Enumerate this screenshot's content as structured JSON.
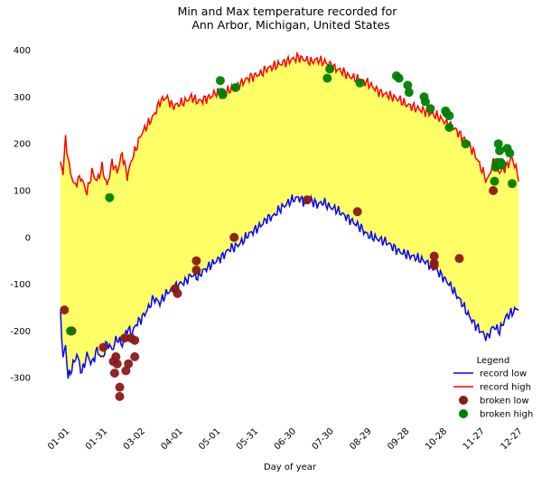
{
  "chart_data": {
    "type": "line",
    "title_line1": "Min and Max temperature recorded for",
    "title_line2": "Ann Arbor, Michigan, United States",
    "xlabel": "Day of year",
    "ylabel": "",
    "xlim": [
      1,
      365
    ],
    "ylim": [
      -400,
      430
    ],
    "y_ticks": [
      400,
      300,
      200,
      100,
      0,
      -100,
      -200,
      -300
    ],
    "x_ticks": [
      {
        "day": 1,
        "label": "01-01"
      },
      {
        "day": 31,
        "label": "01-31"
      },
      {
        "day": 61,
        "label": "03-02"
      },
      {
        "day": 91,
        "label": "04-01"
      },
      {
        "day": 121,
        "label": "05-01"
      },
      {
        "day": 151,
        "label": "05-31"
      },
      {
        "day": 181,
        "label": "06-30"
      },
      {
        "day": 211,
        "label": "07-30"
      },
      {
        "day": 241,
        "label": "08-29"
      },
      {
        "day": 271,
        "label": "09-28"
      },
      {
        "day": 301,
        "label": "10-28"
      },
      {
        "day": 331,
        "label": "11-27"
      },
      {
        "day": 361,
        "label": "12-27"
      }
    ],
    "fill_color": "#ffff66",
    "grid": false,
    "legend": {
      "title": "Legend",
      "placement": "bottom-right",
      "entries": [
        {
          "label": "record low",
          "kind": "line",
          "color": "#0000ff"
        },
        {
          "label": "record high",
          "kind": "line",
          "color": "#ff0000"
        },
        {
          "label": "broken low",
          "kind": "marker",
          "color": "#8b1a1a"
        },
        {
          "label": "broken high",
          "kind": "marker",
          "color": "#008000"
        }
      ]
    },
    "series": [
      {
        "name": "record high",
        "color": "#ff0000",
        "knots": [
          [
            1,
            160
          ],
          [
            3,
            140
          ],
          [
            5,
            210
          ],
          [
            8,
            150
          ],
          [
            12,
            110
          ],
          [
            17,
            130
          ],
          [
            22,
            95
          ],
          [
            26,
            140
          ],
          [
            30,
            120
          ],
          [
            34,
            150
          ],
          [
            38,
            110
          ],
          [
            42,
            160
          ],
          [
            46,
            140
          ],
          [
            50,
            180
          ],
          [
            54,
            130
          ],
          [
            58,
            170
          ],
          [
            61,
            190
          ],
          [
            65,
            220
          ],
          [
            70,
            240
          ],
          [
            75,
            260
          ],
          [
            80,
            290
          ],
          [
            85,
            300
          ],
          [
            90,
            280
          ],
          [
            95,
            285
          ],
          [
            100,
            290
          ],
          [
            105,
            300
          ],
          [
            110,
            290
          ],
          [
            115,
            295
          ],
          [
            120,
            300
          ],
          [
            125,
            310
          ],
          [
            130,
            305
          ],
          [
            135,
            315
          ],
          [
            140,
            320
          ],
          [
            145,
            330
          ],
          [
            150,
            340
          ],
          [
            155,
            345
          ],
          [
            160,
            350
          ],
          [
            165,
            360
          ],
          [
            170,
            365
          ],
          [
            175,
            370
          ],
          [
            180,
            375
          ],
          [
            185,
            380
          ],
          [
            190,
            385
          ],
          [
            195,
            380
          ],
          [
            200,
            375
          ],
          [
            205,
            380
          ],
          [
            210,
            375
          ],
          [
            215,
            370
          ],
          [
            220,
            360
          ],
          [
            225,
            355
          ],
          [
            230,
            345
          ],
          [
            235,
            340
          ],
          [
            240,
            335
          ],
          [
            245,
            330
          ],
          [
            250,
            320
          ],
          [
            255,
            310
          ],
          [
            260,
            305
          ],
          [
            265,
            300
          ],
          [
            270,
            295
          ],
          [
            275,
            285
          ],
          [
            280,
            280
          ],
          [
            285,
            275
          ],
          [
            290,
            270
          ],
          [
            295,
            265
          ],
          [
            300,
            260
          ],
          [
            305,
            250
          ],
          [
            310,
            240
          ],
          [
            315,
            230
          ],
          [
            320,
            215
          ],
          [
            325,
            200
          ],
          [
            330,
            180
          ],
          [
            335,
            150
          ],
          [
            340,
            120
          ],
          [
            345,
            160
          ],
          [
            350,
            140
          ],
          [
            355,
            150
          ],
          [
            360,
            170
          ],
          [
            365,
            130
          ]
        ]
      },
      {
        "name": "record low",
        "color": "#0000ff",
        "knots": [
          [
            1,
            -160
          ],
          [
            3,
            -260
          ],
          [
            5,
            -230
          ],
          [
            7,
            -300
          ],
          [
            10,
            -280
          ],
          [
            14,
            -250
          ],
          [
            18,
            -290
          ],
          [
            22,
            -250
          ],
          [
            26,
            -270
          ],
          [
            30,
            -240
          ],
          [
            34,
            -260
          ],
          [
            38,
            -225
          ],
          [
            42,
            -240
          ],
          [
            46,
            -215
          ],
          [
            50,
            -230
          ],
          [
            54,
            -195
          ],
          [
            58,
            -205
          ],
          [
            61,
            -185
          ],
          [
            65,
            -175
          ],
          [
            70,
            -155
          ],
          [
            75,
            -130
          ],
          [
            80,
            -140
          ],
          [
            85,
            -120
          ],
          [
            90,
            -110
          ],
          [
            95,
            -100
          ],
          [
            100,
            -95
          ],
          [
            105,
            -80
          ],
          [
            110,
            -85
          ],
          [
            115,
            -70
          ],
          [
            120,
            -60
          ],
          [
            125,
            -50
          ],
          [
            130,
            -40
          ],
          [
            135,
            -25
          ],
          [
            140,
            -20
          ],
          [
            145,
            -10
          ],
          [
            150,
            5
          ],
          [
            155,
            15
          ],
          [
            160,
            25
          ],
          [
            165,
            40
          ],
          [
            170,
            45
          ],
          [
            175,
            60
          ],
          [
            180,
            70
          ],
          [
            185,
            80
          ],
          [
            190,
            85
          ],
          [
            195,
            75
          ],
          [
            200,
            80
          ],
          [
            205,
            70
          ],
          [
            210,
            75
          ],
          [
            215,
            65
          ],
          [
            220,
            60
          ],
          [
            225,
            50
          ],
          [
            230,
            40
          ],
          [
            235,
            30
          ],
          [
            240,
            20
          ],
          [
            245,
            5
          ],
          [
            250,
            0
          ],
          [
            255,
            -5
          ],
          [
            260,
            -10
          ],
          [
            265,
            -20
          ],
          [
            270,
            -30
          ],
          [
            275,
            -35
          ],
          [
            280,
            -40
          ],
          [
            285,
            -45
          ],
          [
            290,
            -50
          ],
          [
            295,
            -60
          ],
          [
            300,
            -70
          ],
          [
            305,
            -85
          ],
          [
            310,
            -100
          ],
          [
            315,
            -120
          ],
          [
            320,
            -140
          ],
          [
            325,
            -165
          ],
          [
            330,
            -185
          ],
          [
            335,
            -200
          ],
          [
            340,
            -215
          ],
          [
            345,
            -190
          ],
          [
            350,
            -200
          ],
          [
            355,
            -170
          ],
          [
            360,
            -160
          ],
          [
            365,
            -150
          ]
        ]
      }
    ],
    "broken_low": [
      [
        4,
        -155
      ],
      [
        10,
        -200
      ],
      [
        35,
        -235
      ],
      [
        43,
        -265
      ],
      [
        44,
        -290
      ],
      [
        45,
        -255
      ],
      [
        46,
        -270
      ],
      [
        48,
        -320
      ],
      [
        48,
        -340
      ],
      [
        52,
        -215
      ],
      [
        53,
        -285
      ],
      [
        55,
        -270
      ],
      [
        57,
        -215
      ],
      [
        60,
        -255
      ],
      [
        60,
        -220
      ],
      [
        92,
        -110
      ],
      [
        94,
        -120
      ],
      [
        109,
        -70
      ],
      [
        109,
        -50
      ],
      [
        139,
        0
      ],
      [
        197,
        80
      ],
      [
        237,
        55
      ],
      [
        298,
        -40
      ],
      [
        298,
        -55
      ],
      [
        298,
        -60
      ],
      [
        318,
        -45
      ],
      [
        345,
        100
      ]
    ],
    "broken_high": [
      [
        9,
        -200
      ],
      [
        40,
        85
      ],
      [
        128,
        335
      ],
      [
        129,
        310
      ],
      [
        130,
        305
      ],
      [
        140,
        320
      ],
      [
        213,
        340
      ],
      [
        215,
        360
      ],
      [
        239,
        330
      ],
      [
        268,
        345
      ],
      [
        270,
        340
      ],
      [
        277,
        325
      ],
      [
        278,
        310
      ],
      [
        290,
        300
      ],
      [
        291,
        290
      ],
      [
        295,
        275
      ],
      [
        307,
        270
      ],
      [
        308,
        265
      ],
      [
        310,
        235
      ],
      [
        310,
        260
      ],
      [
        323,
        200
      ],
      [
        346,
        120
      ],
      [
        347,
        150
      ],
      [
        348,
        160
      ],
      [
        349,
        200
      ],
      [
        350,
        185
      ],
      [
        351,
        160
      ],
      [
        352,
        155
      ],
      [
        356,
        190
      ],
      [
        358,
        180
      ],
      [
        360,
        115
      ]
    ]
  }
}
